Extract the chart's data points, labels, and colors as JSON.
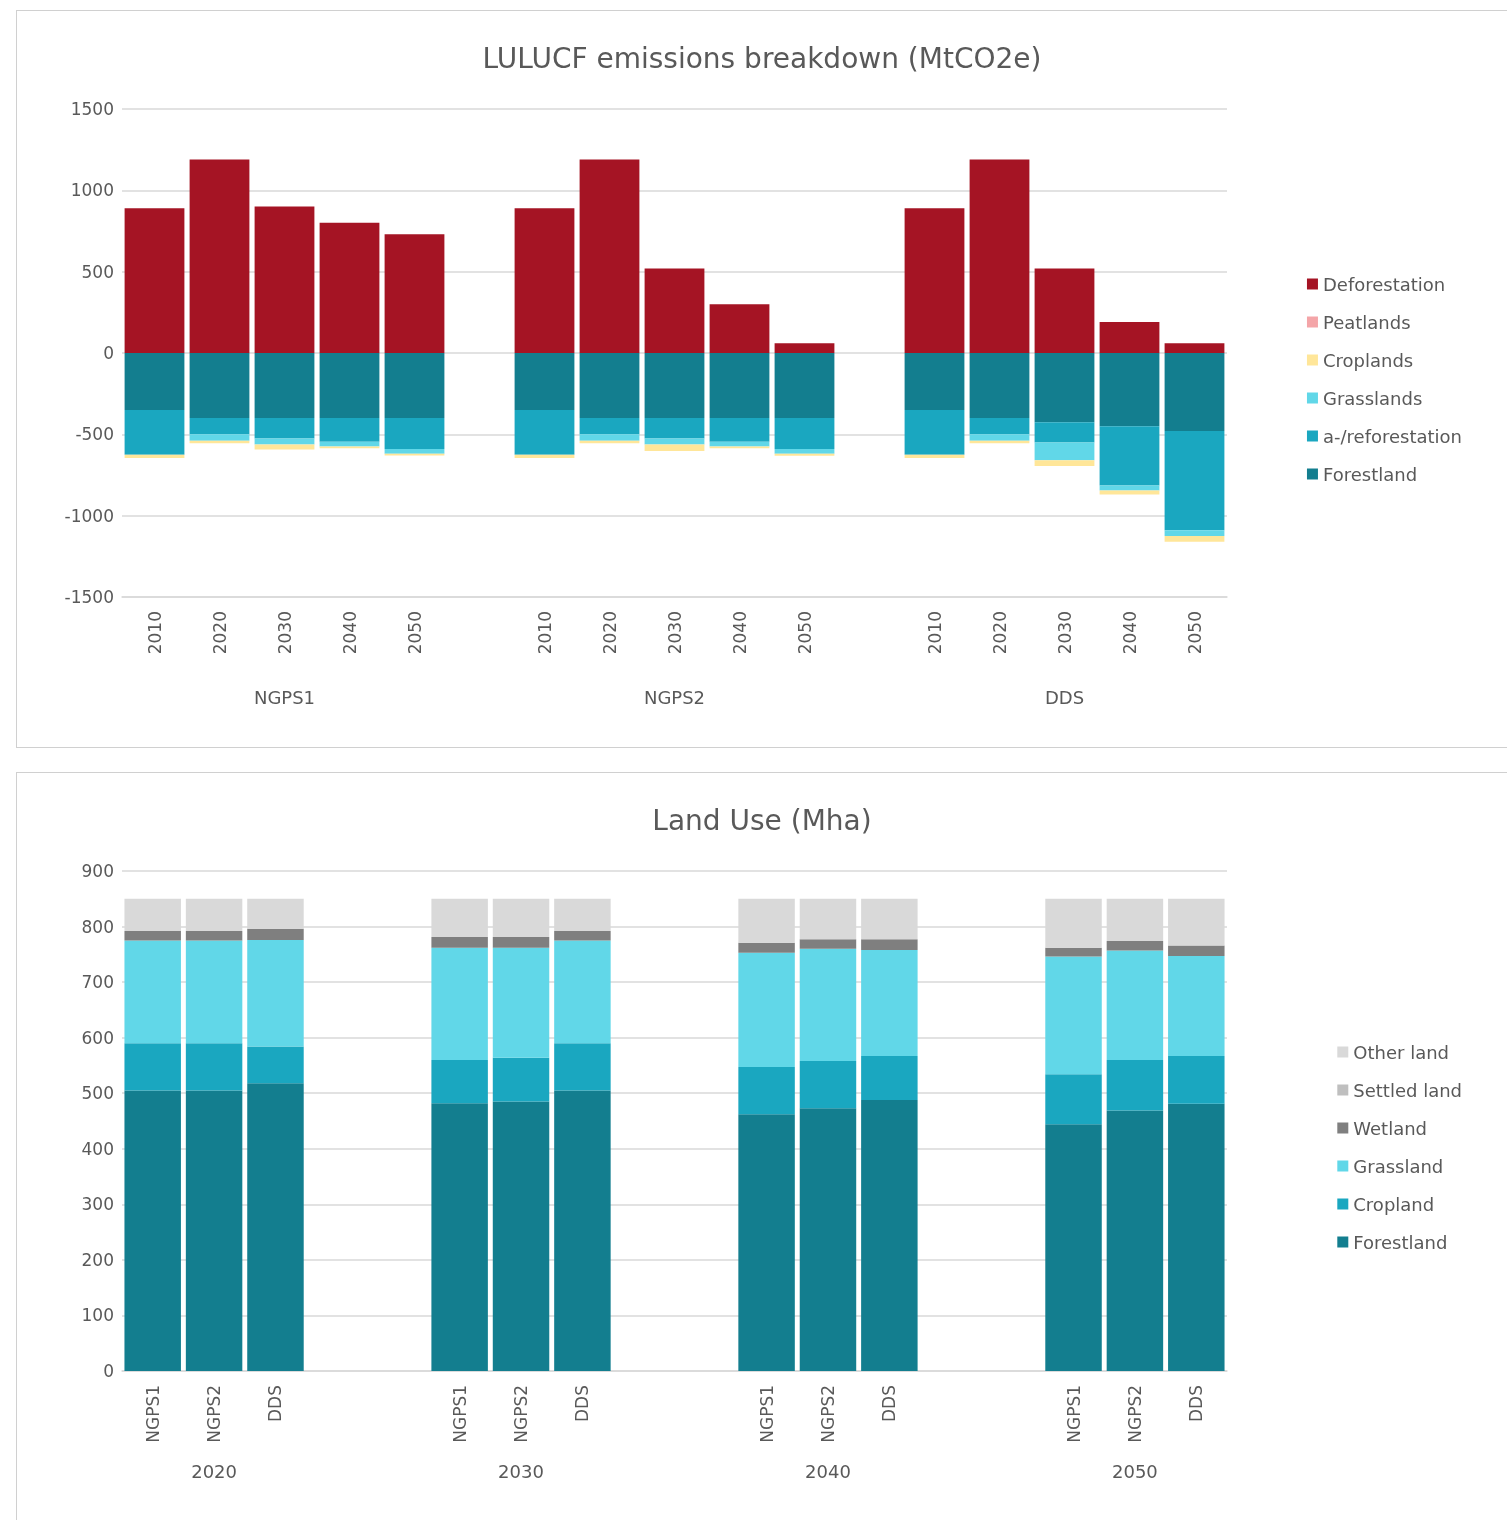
{
  "chart_data": [
    {
      "type": "bar",
      "title": "LULUCF emissions breakdown (MtCO2e)",
      "stacked": true,
      "grid": "y",
      "legend": "right",
      "categories": [
        "2010",
        "2020",
        "2030",
        "2040",
        "2050",
        null,
        "2010",
        "2020",
        "2030",
        "2040",
        "2050",
        null,
        "2010",
        "2020",
        "2030",
        "2040",
        "2050"
      ],
      "annotations": [
        "NGPS1",
        "NGPS2",
        "DDS"
      ],
      "ylim": [
        -1500,
        1500
      ],
      "yticks": [
        -1500,
        -1000,
        -500,
        0,
        500,
        1000,
        1500
      ],
      "series": [
        {
          "name": "Forestland",
          "color": "#137e8f",
          "values": [
            -350,
            -400,
            -400,
            -400,
            -400,
            null,
            -350,
            -400,
            -400,
            -400,
            -400,
            null,
            -350,
            -400,
            -425,
            -450,
            -480
          ]
        },
        {
          "name": "a-/reforestation",
          "color": "#1aa7c0",
          "values": [
            -275,
            -100,
            -125,
            -145,
            -190,
            null,
            -275,
            -100,
            -125,
            -145,
            -190,
            null,
            -275,
            -100,
            -125,
            -365,
            -610
          ]
        },
        {
          "name": "Grasslands",
          "color": "#61d7e8",
          "values": [
            0,
            -40,
            -38,
            -30,
            -30,
            null,
            0,
            -40,
            -38,
            -30,
            -30,
            null,
            0,
            -40,
            -110,
            -30,
            -35
          ]
        },
        {
          "name": "Croplands",
          "color": "#ffe699",
          "values": [
            -20,
            -15,
            -30,
            -10,
            -10,
            null,
            -20,
            -15,
            -40,
            -10,
            -12,
            null,
            -20,
            -15,
            -35,
            -25,
            -35
          ]
        },
        {
          "name": "Peatlands",
          "color": "#f4a5a8",
          "values": [
            0,
            0,
            0,
            0,
            0,
            null,
            0,
            0,
            0,
            0,
            0,
            null,
            0,
            0,
            0,
            0,
            0
          ]
        },
        {
          "name": "Deforestation",
          "color": "#a51424",
          "values": [
            890,
            1190,
            900,
            800,
            730,
            null,
            890,
            1190,
            520,
            300,
            60,
            null,
            890,
            1190,
            520,
            190,
            60
          ]
        }
      ]
    },
    {
      "type": "bar",
      "title": "Land Use (Mha)",
      "stacked": true,
      "grid": "y",
      "legend": "right",
      "categories": [
        "NGPS1",
        "NGPS2",
        "DDS",
        null,
        null,
        "NGPS1",
        "NGPS2",
        "DDS",
        null,
        null,
        "NGPS1",
        "NGPS2",
        "DDS",
        null,
        null,
        "NGPS1",
        "NGPS2",
        "DDS"
      ],
      "annotations": [
        "2020",
        "2030",
        "2040",
        "2050"
      ],
      "ylim": [
        0,
        900
      ],
      "yticks": [
        0,
        100,
        200,
        300,
        400,
        500,
        600,
        700,
        800,
        900
      ],
      "series": [
        {
          "name": "Forestland",
          "color": "#137e8f",
          "values": [
            505,
            505,
            518,
            null,
            null,
            482,
            485,
            505,
            null,
            null,
            462,
            473,
            488,
            null,
            null,
            444,
            469,
            481
          ]
        },
        {
          "name": "Cropland",
          "color": "#1aa7c0",
          "values": [
            85,
            85,
            66,
            null,
            null,
            78,
            79,
            85,
            null,
            null,
            85,
            85,
            79,
            null,
            null,
            90,
            91,
            86
          ]
        },
        {
          "name": "Grassland",
          "color": "#61d7e8",
          "values": [
            185,
            185,
            192,
            null,
            null,
            202,
            198,
            185,
            null,
            null,
            206,
            202,
            191,
            null,
            null,
            212,
            197,
            180
          ]
        },
        {
          "name": "Wetland",
          "color": "#7f7f7f",
          "values": [
            17,
            17,
            20,
            null,
            null,
            19,
            19,
            17,
            null,
            null,
            18,
            17,
            19,
            null,
            null,
            16,
            17,
            19
          ]
        },
        {
          "name": "Settled land",
          "color": "#bfbfbf",
          "values": [
            0,
            0,
            0,
            null,
            null,
            0,
            0,
            0,
            null,
            null,
            0,
            0,
            0,
            null,
            null,
            0,
            0,
            0
          ]
        },
        {
          "name": "Other land",
          "color": "#d9d9d9",
          "values": [
            58,
            58,
            54,
            null,
            null,
            69,
            69,
            58,
            null,
            null,
            79,
            73,
            73,
            null,
            null,
            88,
            76,
            84
          ]
        }
      ]
    }
  ]
}
